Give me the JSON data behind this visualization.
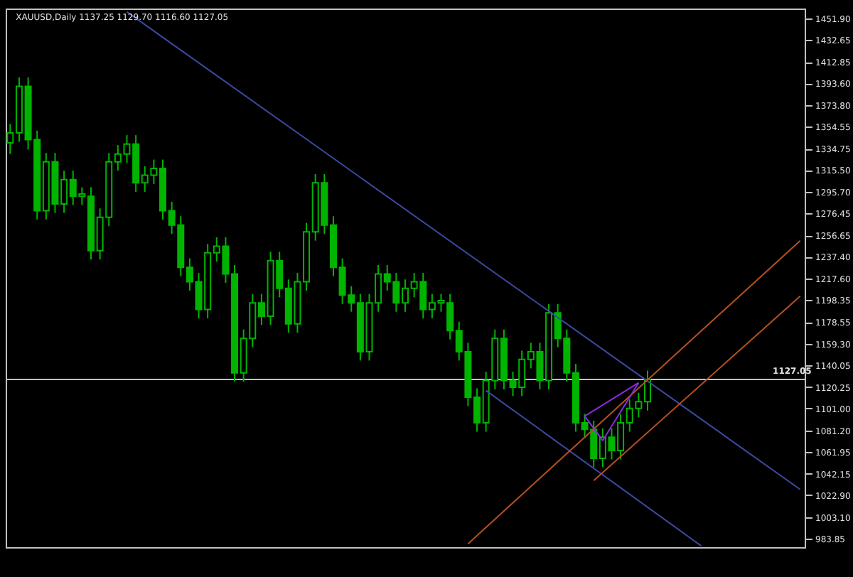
{
  "chart_data": {
    "type": "candlestick",
    "title": "XAUUSD,Daily  1137.25 1129.70 1116.60 1127.05",
    "tick_labels": "y",
    "grid": false,
    "categories": [
      null,
      null,
      null,
      null,
      null,
      null,
      null,
      null,
      null,
      null,
      null,
      null,
      null,
      null,
      null,
      null,
      null,
      null,
      null,
      null,
      null,
      null,
      null,
      null,
      null,
      null,
      null,
      null,
      null,
      null,
      null,
      null,
      null,
      null,
      null,
      null,
      null,
      null,
      null,
      null,
      null,
      null,
      null,
      null,
      null,
      null,
      null,
      null,
      null,
      null,
      null,
      null,
      null,
      null,
      null,
      null,
      null,
      null,
      null,
      null,
      null,
      null,
      null,
      null,
      null,
      null,
      null,
      null,
      null,
      null,
      null,
      null,
      null,
      null,
      null,
      null,
      null,
      null,
      null,
      null,
      null,
      null,
      null,
      null,
      null,
      null,
      null,
      null,
      null
    ],
    "ylim": [
      976,
      1461
    ],
    "yticks": [
      {
        "value": 1451.9,
        "label": "1451.90"
      },
      {
        "value": 1432.65,
        "label": "1432.65"
      },
      {
        "value": 1412.85,
        "label": "1412.85"
      },
      {
        "value": 1393.6,
        "label": "1393.60"
      },
      {
        "value": 1373.8,
        "label": "1373.80"
      },
      {
        "value": 1354.55,
        "label": "1354.55"
      },
      {
        "value": 1334.75,
        "label": "1334.75"
      },
      {
        "value": 1315.5,
        "label": "1315.50"
      },
      {
        "value": 1295.7,
        "label": "1295.70"
      },
      {
        "value": 1276.45,
        "label": "1276.45"
      },
      {
        "value": 1256.65,
        "label": "1256.65"
      },
      {
        "value": 1237.4,
        "label": "1237.40"
      },
      {
        "value": 1217.6,
        "label": "1217.60"
      },
      {
        "value": 1198.35,
        "label": "1198.35"
      },
      {
        "value": 1178.55,
        "label": "1178.55"
      },
      {
        "value": 1159.3,
        "label": "1159.30"
      },
      {
        "value": 1140.05,
        "label": "1140.05"
      },
      {
        "value": 1120.25,
        "label": "1120.25"
      },
      {
        "value": 1101.0,
        "label": "1101.00"
      },
      {
        "value": 1081.2,
        "label": "1081.20"
      },
      {
        "value": 1061.95,
        "label": "1061.95"
      },
      {
        "value": 1042.15,
        "label": "1042.15"
      },
      {
        "value": 1022.9,
        "label": "1022.90"
      },
      {
        "value": 1003.1,
        "label": "1003.10"
      },
      {
        "value": 983.85,
        "label": "983.85"
      }
    ],
    "ref_lines": [
      {
        "axis": "y",
        "value": 1127.05,
        "label": "1127.05",
        "color": "#c0c0c0"
      }
    ],
    "series": [
      {
        "color": "#00b400",
        "ohlc": [
          [
            1340,
            1357,
            1330,
            1349
          ],
          [
            1349,
            1399,
            1341,
            1391
          ],
          [
            1391,
            1399,
            1334,
            1343
          ],
          [
            1343,
            1351,
            1271,
            1279
          ],
          [
            1279,
            1331,
            1271,
            1323
          ],
          [
            1323,
            1331,
            1277,
            1285
          ],
          [
            1285,
            1315,
            1277,
            1307
          ],
          [
            1307,
            1315,
            1284,
            1292
          ],
          [
            1292,
            1300,
            1284,
            1294
          ],
          [
            1292,
            1300,
            1235,
            1243
          ],
          [
            1243,
            1281,
            1235,
            1273
          ],
          [
            1273,
            1331,
            1265,
            1323
          ],
          [
            1323,
            1338,
            1315,
            1330
          ],
          [
            1330,
            1347,
            1322,
            1339
          ],
          [
            1339,
            1347,
            1296,
            1304
          ],
          [
            1304,
            1319,
            1296,
            1311
          ],
          [
            1311,
            1325,
            1303,
            1317
          ],
          [
            1317,
            1325,
            1271,
            1279
          ],
          [
            1279,
            1287,
            1258,
            1266
          ],
          [
            1266,
            1274,
            1220,
            1228
          ],
          [
            1228,
            1236,
            1207,
            1215
          ],
          [
            1215,
            1223,
            1182,
            1190
          ],
          [
            1190,
            1249,
            1182,
            1241
          ],
          [
            1241,
            1255,
            1233,
            1247
          ],
          [
            1247,
            1255,
            1214,
            1222
          ],
          [
            1222,
            1230,
            1125,
            1133
          ],
          [
            1133,
            1172,
            1125,
            1164
          ],
          [
            1164,
            1204,
            1156,
            1196
          ],
          [
            1196,
            1204,
            1176,
            1184
          ],
          [
            1184,
            1242,
            1176,
            1234
          ],
          [
            1234,
            1242,
            1201,
            1209
          ],
          [
            1209,
            1217,
            1169,
            1177
          ],
          [
            1177,
            1223,
            1169,
            1215
          ],
          [
            1215,
            1268,
            1207,
            1260
          ],
          [
            1260,
            1312,
            1252,
            1304
          ],
          [
            1304,
            1312,
            1258,
            1266
          ],
          [
            1266,
            1274,
            1220,
            1228
          ],
          [
            1228,
            1236,
            1195,
            1203
          ],
          [
            1203,
            1211,
            1188,
            1196
          ],
          [
            1196,
            1204,
            1144,
            1152
          ],
          [
            1152,
            1204,
            1144,
            1196
          ],
          [
            1196,
            1230,
            1188,
            1222
          ],
          [
            1222,
            1230,
            1207,
            1215
          ],
          [
            1215,
            1223,
            1188,
            1196
          ],
          [
            1196,
            1217,
            1188,
            1209
          ],
          [
            1209,
            1223,
            1201,
            1215
          ],
          [
            1215,
            1223,
            1182,
            1190
          ],
          [
            1190,
            1204,
            1182,
            1196
          ],
          [
            1196,
            1204,
            1188,
            1198
          ],
          [
            1196,
            1204,
            1163,
            1171
          ],
          [
            1171,
            1179,
            1144,
            1152
          ],
          [
            1152,
            1160,
            1103,
            1111
          ],
          [
            1111,
            1119,
            1080,
            1088
          ],
          [
            1088,
            1134,
            1080,
            1126
          ],
          [
            1126,
            1172,
            1118,
            1164
          ],
          [
            1164,
            1172,
            1118,
            1126
          ],
          [
            1126,
            1134,
            1112,
            1120
          ],
          [
            1120,
            1153,
            1112,
            1145
          ],
          [
            1145,
            1160,
            1137,
            1152
          ],
          [
            1152,
            1160,
            1118,
            1126
          ],
          [
            1126,
            1195,
            1118,
            1187
          ],
          [
            1187,
            1195,
            1156,
            1164
          ],
          [
            1164,
            1172,
            1125,
            1133
          ],
          [
            1133,
            1141,
            1080,
            1088
          ],
          [
            1088,
            1096,
            1074,
            1082
          ],
          [
            1082,
            1090,
            1048,
            1056
          ],
          [
            1056,
            1083,
            1048,
            1075
          ],
          [
            1075,
            1083,
            1055,
            1063
          ],
          [
            1063,
            1096,
            1055,
            1088
          ],
          [
            1088,
            1109,
            1080,
            1101
          ],
          [
            1101,
            1115,
            1093,
            1107
          ],
          [
            1107,
            1135,
            1099,
            1127
          ],
          null,
          null,
          null,
          null,
          null,
          null,
          null,
          null,
          null,
          null,
          null,
          null,
          null,
          null,
          null,
          null,
          null
        ]
      },
      {
        "type": "line",
        "color": "#3c4aa0",
        "values": [
          null,
          null,
          null,
          null,
          null,
          null,
          null,
          null,
          null,
          null,
          null,
          null,
          null,
          1458,
          null,
          null,
          null,
          null,
          null,
          null,
          null,
          null,
          null,
          null,
          null,
          null,
          null,
          null,
          null,
          null,
          null,
          null,
          null,
          null,
          null,
          null,
          null,
          null,
          null,
          null,
          null,
          null,
          null,
          null,
          null,
          null,
          null,
          null,
          null,
          null,
          null,
          null,
          null,
          null,
          null,
          null,
          null,
          null,
          null,
          null,
          null,
          null,
          null,
          null,
          null,
          null,
          null,
          null,
          null,
          null,
          null,
          null,
          null,
          null,
          null,
          null,
          null,
          null,
          null,
          null,
          null,
          null,
          null,
          null,
          null,
          null,
          null,
          null,
          1028
        ]
      },
      {
        "type": "line",
        "color": "#3c4aa0",
        "values": [
          null,
          null,
          null,
          null,
          null,
          null,
          null,
          null,
          null,
          null,
          null,
          null,
          null,
          null,
          null,
          null,
          null,
          null,
          null,
          null,
          null,
          null,
          null,
          null,
          null,
          null,
          null,
          null,
          null,
          null,
          null,
          null,
          null,
          null,
          null,
          null,
          null,
          null,
          null,
          null,
          null,
          null,
          null,
          null,
          null,
          null,
          null,
          null,
          null,
          null,
          null,
          null,
          null,
          1117,
          null,
          null,
          null,
          null,
          null,
          null,
          null,
          null,
          null,
          null,
          null,
          null,
          null,
          null,
          null,
          null,
          null,
          null,
          null,
          null,
          null,
          null,
          null,
          977,
          null,
          null,
          null,
          null,
          null,
          null,
          null,
          null,
          null,
          null,
          null
        ]
      },
      {
        "type": "line",
        "color": "#b8501e",
        "values": [
          null,
          null,
          null,
          null,
          null,
          null,
          null,
          null,
          null,
          null,
          null,
          null,
          null,
          null,
          null,
          null,
          null,
          null,
          null,
          null,
          null,
          null,
          null,
          null,
          null,
          null,
          null,
          null,
          null,
          null,
          null,
          null,
          null,
          null,
          null,
          null,
          null,
          null,
          null,
          null,
          null,
          null,
          null,
          null,
          null,
          null,
          null,
          null,
          null,
          null,
          null,
          979,
          null,
          null,
          null,
          null,
          null,
          null,
          null,
          null,
          null,
          null,
          null,
          null,
          null,
          null,
          null,
          null,
          null,
          null,
          null,
          null,
          null,
          null,
          null,
          null,
          null,
          null,
          null,
          null,
          null,
          null,
          null,
          null,
          null,
          null,
          null,
          null,
          1252
        ]
      },
      {
        "type": "line",
        "color": "#b8501e",
        "values": [
          null,
          null,
          null,
          null,
          null,
          null,
          null,
          null,
          null,
          null,
          null,
          null,
          null,
          null,
          null,
          null,
          null,
          null,
          null,
          null,
          null,
          null,
          null,
          null,
          null,
          null,
          null,
          null,
          null,
          null,
          null,
          null,
          null,
          null,
          null,
          null,
          null,
          null,
          null,
          null,
          null,
          null,
          null,
          null,
          null,
          null,
          null,
          null,
          null,
          null,
          null,
          null,
          null,
          null,
          null,
          null,
          null,
          null,
          null,
          null,
          null,
          null,
          null,
          null,
          null,
          1036,
          null,
          null,
          null,
          null,
          null,
          null,
          null,
          null,
          null,
          null,
          null,
          null,
          null,
          null,
          null,
          null,
          null,
          null,
          null,
          null,
          null,
          null,
          1202
        ]
      },
      {
        "type": "line",
        "color": "#8a2be2",
        "values": [
          null,
          null,
          null,
          null,
          null,
          null,
          null,
          null,
          null,
          null,
          null,
          null,
          null,
          null,
          null,
          null,
          null,
          null,
          null,
          null,
          null,
          null,
          null,
          null,
          null,
          null,
          null,
          null,
          null,
          null,
          null,
          null,
          null,
          null,
          null,
          null,
          null,
          null,
          null,
          null,
          null,
          null,
          null,
          null,
          null,
          null,
          null,
          null,
          null,
          null,
          null,
          null,
          null,
          null,
          null,
          null,
          null,
          null,
          null,
          null,
          null,
          null,
          null,
          null,
          1094,
          null,
          1072,
          null,
          null,
          null,
          1124,
          null,
          null,
          null,
          null,
          null,
          null,
          null,
          null,
          null,
          null,
          null,
          null,
          null,
          null,
          null,
          null,
          null,
          null
        ]
      },
      {
        "type": "line",
        "color": "#8a2be2",
        "values": [
          null,
          null,
          null,
          null,
          null,
          null,
          null,
          null,
          null,
          null,
          null,
          null,
          null,
          null,
          null,
          null,
          null,
          null,
          null,
          null,
          null,
          null,
          null,
          null,
          null,
          null,
          null,
          null,
          null,
          null,
          null,
          null,
          null,
          null,
          null,
          null,
          null,
          null,
          null,
          null,
          null,
          null,
          null,
          null,
          null,
          null,
          null,
          null,
          null,
          null,
          null,
          null,
          null,
          null,
          null,
          null,
          null,
          null,
          null,
          null,
          null,
          null,
          null,
          null,
          1094,
          null,
          null,
          null,
          null,
          null,
          1124,
          null,
          null,
          null,
          null,
          null,
          null,
          null,
          null,
          null,
          null,
          null,
          null,
          null,
          null,
          null,
          null,
          null,
          null
        ]
      }
    ]
  }
}
